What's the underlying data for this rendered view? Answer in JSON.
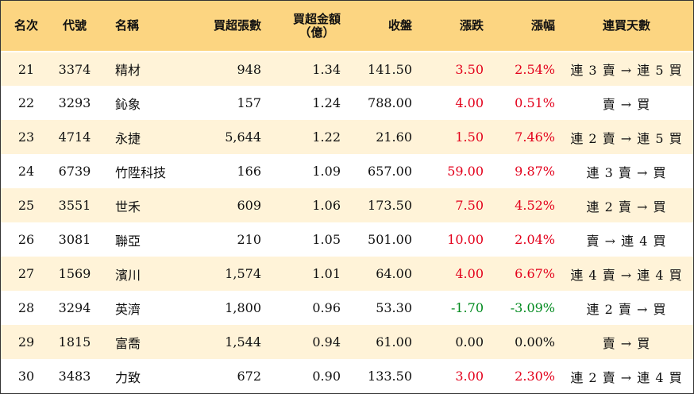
{
  "columns": {
    "rank": "名次",
    "code": "代號",
    "name": "名稱",
    "lots": "買超張數",
    "amount_line1": "買超金額",
    "amount_line2": "（億）",
    "close": "收盤",
    "change": "漲跌",
    "pct": "漲幅",
    "streak": "連買天數"
  },
  "colors": {
    "header_bg": "#fcd581",
    "row_alt_bg": "#fff3d8",
    "up": "#e3001b",
    "down": "#008a1e"
  },
  "rows": [
    {
      "rank": "21",
      "code": "3374",
      "name": "精材",
      "lots": "948",
      "amount": "1.34",
      "close": "141.50",
      "change": "3.50",
      "pct": "2.54%",
      "dir": "up",
      "streak": "連 3 賣 → 連 5 買"
    },
    {
      "rank": "22",
      "code": "3293",
      "name": "鈊象",
      "lots": "157",
      "amount": "1.24",
      "close": "788.00",
      "change": "4.00",
      "pct": "0.51%",
      "dir": "up",
      "streak": "賣 → 買"
    },
    {
      "rank": "23",
      "code": "4714",
      "name": "永捷",
      "lots": "5,644",
      "amount": "1.22",
      "close": "21.60",
      "change": "1.50",
      "pct": "7.46%",
      "dir": "up",
      "streak": "連 2 賣 → 連 5 買"
    },
    {
      "rank": "24",
      "code": "6739",
      "name": "竹陞科技",
      "lots": "166",
      "amount": "1.09",
      "close": "657.00",
      "change": "59.00",
      "pct": "9.87%",
      "dir": "up",
      "streak": "連 3 賣 → 買"
    },
    {
      "rank": "25",
      "code": "3551",
      "name": "世禾",
      "lots": "609",
      "amount": "1.06",
      "close": "173.50",
      "change": "7.50",
      "pct": "4.52%",
      "dir": "up",
      "streak": "連 2 賣 → 買"
    },
    {
      "rank": "26",
      "code": "3081",
      "name": "聯亞",
      "lots": "210",
      "amount": "1.05",
      "close": "501.00",
      "change": "10.00",
      "pct": "2.04%",
      "dir": "up",
      "streak": "賣 → 連 4 買"
    },
    {
      "rank": "27",
      "code": "1569",
      "name": "濱川",
      "lots": "1,574",
      "amount": "1.01",
      "close": "64.00",
      "change": "4.00",
      "pct": "6.67%",
      "dir": "up",
      "streak": "連 4 賣 → 連 4 買"
    },
    {
      "rank": "28",
      "code": "3294",
      "name": "英濟",
      "lots": "1,800",
      "amount": "0.96",
      "close": "53.30",
      "change": "-1.70",
      "pct": "-3.09%",
      "dir": "down",
      "streak": "連 2 賣 → 買"
    },
    {
      "rank": "29",
      "code": "1815",
      "name": "富喬",
      "lots": "1,544",
      "amount": "0.94",
      "close": "61.00",
      "change": "0.00",
      "pct": "0.00%",
      "dir": "flat",
      "streak": "賣 → 買"
    },
    {
      "rank": "30",
      "code": "3483",
      "name": "力致",
      "lots": "672",
      "amount": "0.90",
      "close": "133.50",
      "change": "3.00",
      "pct": "2.30%",
      "dir": "up",
      "streak": "連 2 賣 → 連 4 買"
    }
  ]
}
